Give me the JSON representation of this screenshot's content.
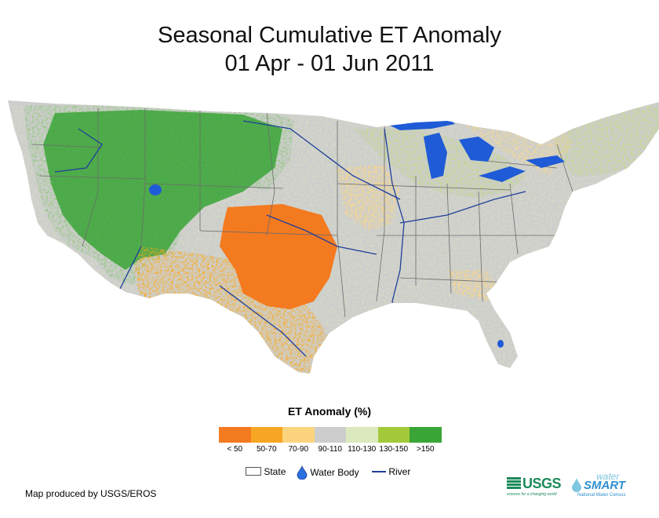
{
  "title": {
    "line1": "Seasonal Cumulative ET Anomaly",
    "line2": "01 Apr - 01 Jun 2011"
  },
  "legend": {
    "title": "ET Anomaly (%)",
    "classes": [
      {
        "label": "< 50",
        "color": "#f47a20"
      },
      {
        "label": "50-70",
        "color": "#f7a623"
      },
      {
        "label": "70-90",
        "color": "#fdd47e"
      },
      {
        "label": "90-110",
        "color": "#cdcdcd"
      },
      {
        "label": "110-130",
        "color": "#dce8be"
      },
      {
        "label": "130-150",
        "color": "#a3c93a"
      },
      {
        "label": ">150",
        "color": "#3aa537"
      }
    ],
    "key": {
      "state": "State",
      "water": "Water Body",
      "river": "River"
    }
  },
  "credit": "Map produced by USGS/EROS",
  "logos": {
    "usgs": "USGS",
    "usgs_tagline": "science for a changing world",
    "water": "water",
    "smart": "SMART",
    "national": "National Water Census"
  },
  "colors": {
    "water": "#1f5bd6",
    "river": "#1f3f9a",
    "state_line": "#6b6b6b"
  }
}
